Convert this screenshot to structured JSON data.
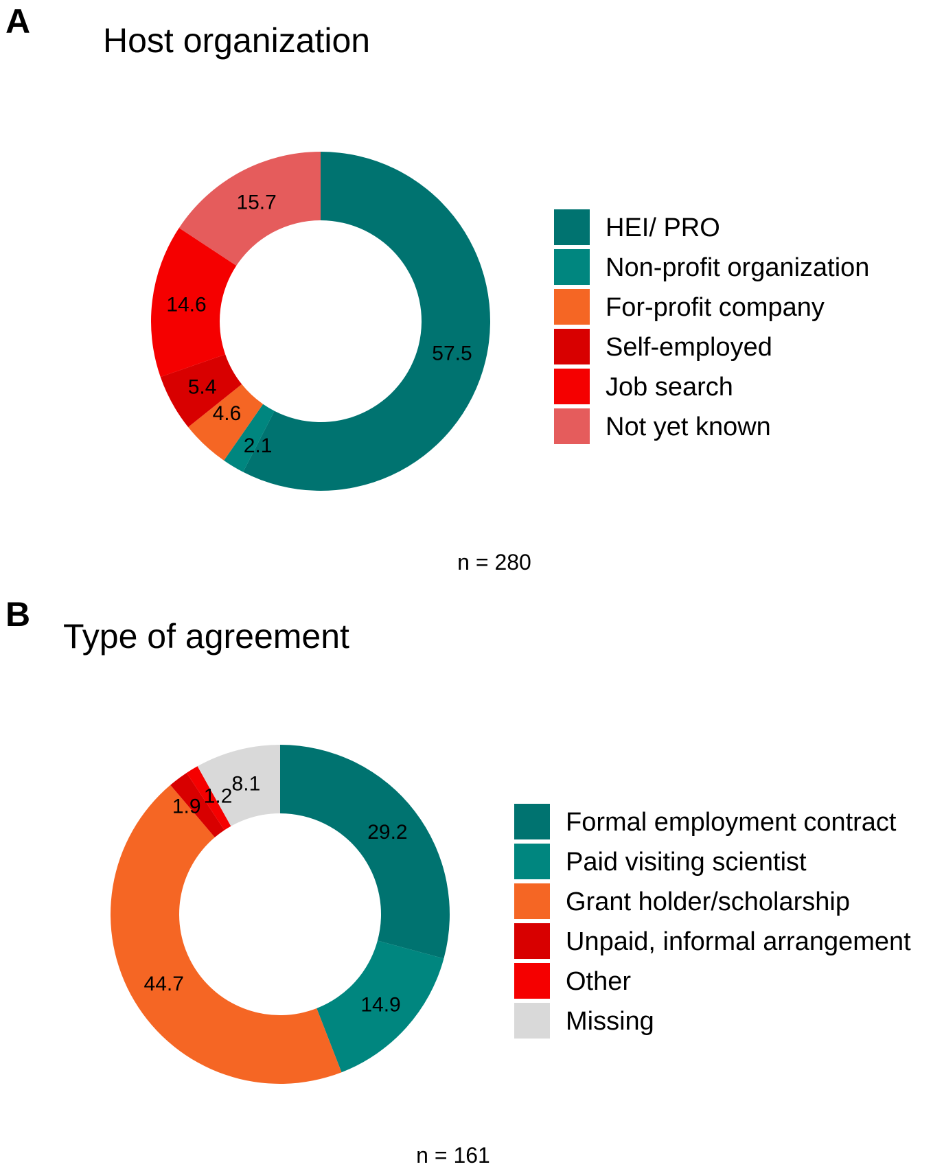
{
  "chart_data": [
    {
      "type": "pie",
      "panel": "A",
      "title": "Host organization",
      "n_label": "n = 280",
      "categories": [
        "HEI/ PRO",
        "Non-profit organization",
        "For-profit company",
        "Self-employed",
        "Job search",
        "Not yet known"
      ],
      "values": [
        57.5,
        2.1,
        4.6,
        5.4,
        14.6,
        15.7
      ],
      "labels": [
        "57.5",
        "2.1",
        "4.6",
        "5.4",
        "14.6",
        "15.7"
      ],
      "colors": [
        "#007370",
        "#00867F",
        "#F56624",
        "#D80000",
        "#F50000",
        "#E55C5C"
      ],
      "legend_position": "right",
      "style": "donut"
    },
    {
      "type": "pie",
      "panel": "B",
      "title": "Type of agreement",
      "n_label": "n = 161",
      "categories": [
        "Formal employment contract",
        "Paid visiting scientist",
        "Grant holder/scholarship",
        "Unpaid, informal arrangement",
        "Other",
        "Missing"
      ],
      "values": [
        29.2,
        14.9,
        44.7,
        1.9,
        1.2,
        8.1
      ],
      "labels": [
        "29.2",
        "14.9",
        "44.7",
        "1.9",
        "1.2",
        "8.1"
      ],
      "colors": [
        "#007370",
        "#00867F",
        "#F56624",
        "#D80000",
        "#F50000",
        "#D9D9D9"
      ],
      "legend_position": "right",
      "style": "donut"
    }
  ]
}
